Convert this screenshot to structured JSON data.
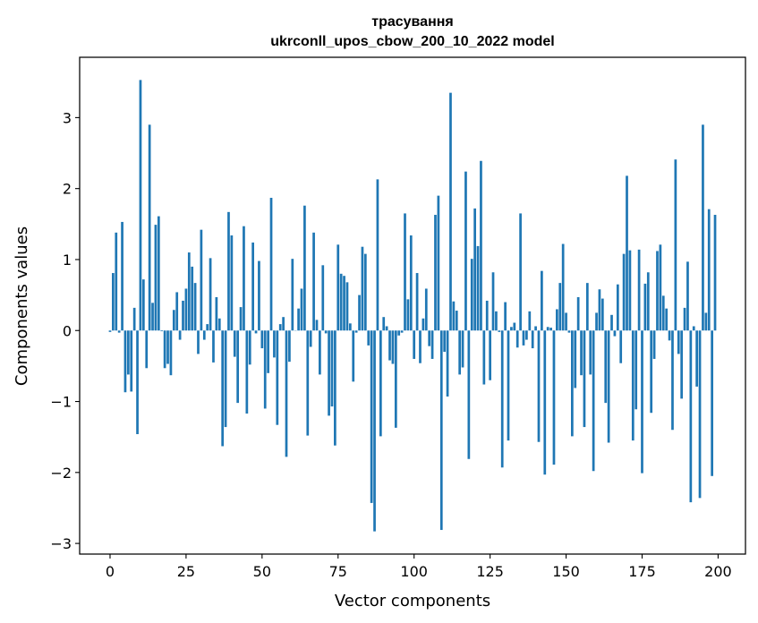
{
  "chart_data": {
    "type": "bar",
    "title_line1": "трасування",
    "title_line2": "ukrconll_upos_cbow_200_10_2022 model",
    "xlabel": "Vector components",
    "ylabel": "Components values",
    "xlim": [
      -10,
      209
    ],
    "ylim": [
      -3.15,
      3.85
    ],
    "xticks": [
      0,
      25,
      50,
      75,
      100,
      125,
      150,
      175,
      200
    ],
    "xtick_labels": [
      "0",
      "25",
      "50",
      "75",
      "100",
      "125",
      "150",
      "175",
      "200"
    ],
    "yticks": [
      -3,
      -2,
      -1,
      0,
      1,
      2,
      3
    ],
    "ytick_labels": [
      "−3",
      "−2",
      "−1",
      "0",
      "1",
      "2",
      "3"
    ],
    "bar_color": "#1f77b4",
    "grid": false,
    "x": [
      0,
      1,
      2,
      3,
      4,
      5,
      6,
      7,
      8,
      9,
      10,
      11,
      12,
      13,
      14,
      15,
      16,
      17,
      18,
      19,
      20,
      21,
      22,
      23,
      24,
      25,
      26,
      27,
      28,
      29,
      30,
      31,
      32,
      33,
      34,
      35,
      36,
      37,
      38,
      39,
      40,
      41,
      42,
      43,
      44,
      45,
      46,
      47,
      48,
      49,
      50,
      51,
      52,
      53,
      54,
      55,
      56,
      57,
      58,
      59,
      60,
      61,
      62,
      63,
      64,
      65,
      66,
      67,
      68,
      69,
      70,
      71,
      72,
      73,
      74,
      75,
      76,
      77,
      78,
      79,
      80,
      81,
      82,
      83,
      84,
      85,
      86,
      87,
      88,
      89,
      90,
      91,
      92,
      93,
      94,
      95,
      96,
      97,
      98,
      99,
      100,
      101,
      102,
      103,
      104,
      105,
      106,
      107,
      108,
      109,
      110,
      111,
      112,
      113,
      114,
      115,
      116,
      117,
      118,
      119,
      120,
      121,
      122,
      123,
      124,
      125,
      126,
      127,
      128,
      129,
      130,
      131,
      132,
      133,
      134,
      135,
      136,
      137,
      138,
      139,
      140,
      141,
      142,
      143,
      144,
      145,
      146,
      147,
      148,
      149,
      150,
      151,
      152,
      153,
      154,
      155,
      156,
      157,
      158,
      159,
      160,
      161,
      162,
      163,
      164,
      165,
      166,
      167,
      168,
      169,
      170,
      171,
      172,
      173,
      174,
      175,
      176,
      177,
      178,
      179,
      180,
      181,
      182,
      183,
      184,
      185,
      186,
      187,
      188,
      189,
      190,
      191,
      192,
      193,
      194,
      195,
      196,
      197,
      198,
      199
    ],
    "values": [
      -0.02,
      0.81,
      1.38,
      -0.03,
      1.53,
      -0.87,
      -0.62,
      -0.86,
      0.32,
      -1.46,
      3.53,
      0.72,
      -0.53,
      2.9,
      0.39,
      1.49,
      1.61,
      -0.01,
      -0.53,
      -0.47,
      -0.63,
      0.29,
      0.54,
      -0.13,
      0.42,
      0.59,
      1.1,
      0.9,
      0.67,
      -0.33,
      1.42,
      -0.13,
      0.09,
      1.02,
      -0.45,
      0.47,
      0.17,
      -1.63,
      -1.36,
      1.67,
      1.34,
      -0.37,
      -1.02,
      0.33,
      1.47,
      -1.17,
      -0.48,
      1.24,
      -0.04,
      0.98,
      -0.25,
      -1.1,
      -0.6,
      1.87,
      -0.38,
      -1.33,
      0.09,
      0.19,
      -1.78,
      -0.44,
      1.01,
      0.0,
      0.31,
      0.59,
      1.76,
      -1.48,
      -0.23,
      1.38,
      0.15,
      -0.62,
      0.92,
      -0.04,
      -1.2,
      -1.07,
      -1.62,
      1.21,
      0.8,
      0.77,
      0.68,
      0.1,
      -0.72,
      -0.03,
      0.5,
      1.18,
      1.08,
      -0.21,
      -2.43,
      -2.83,
      2.13,
      -1.49,
      0.19,
      0.06,
      -0.42,
      -0.47,
      -1.37,
      -0.07,
      -0.03,
      1.65,
      0.44,
      1.34,
      -0.4,
      0.81,
      -0.46,
      0.17,
      0.59,
      -0.22,
      -0.4,
      1.63,
      1.9,
      -2.81,
      -0.3,
      -0.93,
      3.35,
      0.41,
      0.28,
      -0.62,
      -0.52,
      2.24,
      -1.81,
      1.01,
      1.72,
      1.19,
      2.39,
      -0.76,
      0.42,
      -0.7,
      0.82,
      0.27,
      -0.02,
      -1.93,
      0.4,
      -1.55,
      0.05,
      0.11,
      -0.24,
      1.65,
      -0.21,
      -0.13,
      0.27,
      -0.25,
      0.06,
      -1.57,
      0.84,
      -2.03,
      0.05,
      0.04,
      -1.89,
      0.3,
      0.67,
      1.22,
      0.25,
      -0.03,
      -1.49,
      -0.81,
      0.47,
      -0.63,
      -1.36,
      0.67,
      -0.62,
      -1.98,
      0.25,
      0.58,
      0.45,
      -1.02,
      -1.58,
      0.22,
      -0.08,
      0.65,
      -0.46,
      1.08,
      2.18,
      1.13,
      -1.55,
      -1.11,
      1.14,
      -2.01,
      0.66,
      0.82,
      -1.16,
      -0.4,
      1.12,
      1.21,
      0.49,
      0.31,
      -0.14,
      -1.4,
      2.41,
      -0.33,
      -0.96,
      0.32,
      0.97,
      -2.42,
      0.06,
      -0.79,
      -2.36,
      2.9,
      0.25,
      1.71,
      -2.05,
      1.63
    ]
  }
}
